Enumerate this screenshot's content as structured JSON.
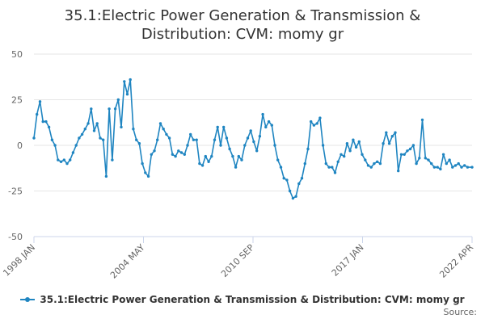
{
  "chart_data": {
    "type": "line",
    "title_lines": [
      "35.1:Electric Power Generation & Transmission &",
      "Distribution: CVM: momy gr"
    ],
    "xlabel": "",
    "ylabel": "",
    "ylim": [
      -50,
      50
    ],
    "yticks": [
      50,
      25,
      0,
      -25,
      -50
    ],
    "x_range": [
      "1998-01",
      "2022-04"
    ],
    "xtick_labels": [
      "1998 JAN",
      "2004 MAY",
      "2010 SEP",
      "2017 JAN",
      "2022 APR"
    ],
    "grid": true,
    "legend_position": "bottom-center",
    "series": [
      {
        "name": "35.1:Electric Power Generation & Transmission & Distribution: CVM: momy gr",
        "color": "#1f85c1",
        "sampled_points": [
          [
            "1998-01",
            4
          ],
          [
            "1998-03",
            17
          ],
          [
            "1998-05",
            24
          ],
          [
            "1998-07",
            13
          ],
          [
            "1998-09",
            13
          ],
          [
            "1998-11",
            10
          ],
          [
            "1999-01",
            3
          ],
          [
            "1999-03",
            0
          ],
          [
            "1999-05",
            -8
          ],
          [
            "1999-07",
            -9
          ],
          [
            "1999-09",
            -8
          ],
          [
            "1999-11",
            -10
          ],
          [
            "2000-01",
            -8
          ],
          [
            "2000-03",
            -4
          ],
          [
            "2000-05",
            0
          ],
          [
            "2000-07",
            4
          ],
          [
            "2000-09",
            6
          ],
          [
            "2000-11",
            9
          ],
          [
            "2001-01",
            12
          ],
          [
            "2001-03",
            20
          ],
          [
            "2001-05",
            8
          ],
          [
            "2001-07",
            12
          ],
          [
            "2001-09",
            4
          ],
          [
            "2001-11",
            3
          ],
          [
            "2002-01",
            -17
          ],
          [
            "2002-03",
            20
          ],
          [
            "2002-05",
            -8
          ],
          [
            "2002-07",
            20
          ],
          [
            "2002-09",
            25
          ],
          [
            "2002-11",
            10
          ],
          [
            "2003-01",
            35
          ],
          [
            "2003-03",
            28
          ],
          [
            "2003-05",
            36
          ],
          [
            "2003-07",
            9
          ],
          [
            "2003-09",
            3
          ],
          [
            "2003-11",
            1
          ],
          [
            "2004-01",
            -10
          ],
          [
            "2004-03",
            -15
          ],
          [
            "2004-05",
            -17
          ],
          [
            "2004-07",
            -5
          ],
          [
            "2004-09",
            -3
          ],
          [
            "2004-11",
            3
          ],
          [
            "2005-01",
            12
          ],
          [
            "2005-03",
            9
          ],
          [
            "2005-05",
            6
          ],
          [
            "2005-07",
            4
          ],
          [
            "2005-09",
            -5
          ],
          [
            "2005-11",
            -6
          ],
          [
            "2006-01",
            -3
          ],
          [
            "2006-03",
            -4
          ],
          [
            "2006-05",
            -5
          ],
          [
            "2006-07",
            0
          ],
          [
            "2006-09",
            6
          ],
          [
            "2006-11",
            3
          ],
          [
            "2007-01",
            3
          ],
          [
            "2007-03",
            -10
          ],
          [
            "2007-05",
            -11
          ],
          [
            "2007-07",
            -6
          ],
          [
            "2007-09",
            -9
          ],
          [
            "2007-11",
            -6
          ],
          [
            "2008-01",
            3
          ],
          [
            "2008-03",
            10
          ],
          [
            "2008-05",
            0
          ],
          [
            "2008-07",
            10
          ],
          [
            "2008-09",
            4
          ],
          [
            "2008-11",
            -2
          ],
          [
            "2009-01",
            -6
          ],
          [
            "2009-03",
            -12
          ],
          [
            "2009-05",
            -6
          ],
          [
            "2009-07",
            -8
          ],
          [
            "2009-09",
            0
          ],
          [
            "2009-11",
            4
          ],
          [
            "2010-01",
            8
          ],
          [
            "2010-03",
            2
          ],
          [
            "2010-05",
            -3
          ],
          [
            "2010-07",
            5
          ],
          [
            "2010-09",
            17
          ],
          [
            "2010-11",
            10
          ],
          [
            "2011-01",
            13
          ],
          [
            "2011-03",
            11
          ],
          [
            "2011-05",
            0
          ],
          [
            "2011-07",
            -8
          ],
          [
            "2011-09",
            -12
          ],
          [
            "2011-11",
            -18
          ],
          [
            "2012-01",
            -19
          ],
          [
            "2012-03",
            -25
          ],
          [
            "2012-05",
            -29
          ],
          [
            "2012-07",
            -28
          ],
          [
            "2012-09",
            -21
          ],
          [
            "2012-11",
            -18
          ],
          [
            "2013-01",
            -10
          ],
          [
            "2013-03",
            -2
          ],
          [
            "2013-05",
            13
          ],
          [
            "2013-07",
            11
          ],
          [
            "2013-09",
            12
          ],
          [
            "2013-11",
            15
          ],
          [
            "2014-01",
            0
          ],
          [
            "2014-03",
            -10
          ],
          [
            "2014-05",
            -12
          ],
          [
            "2014-07",
            -12
          ],
          [
            "2014-09",
            -15
          ],
          [
            "2014-11",
            -9
          ],
          [
            "2015-01",
            -5
          ],
          [
            "2015-03",
            -6
          ],
          [
            "2015-05",
            1
          ],
          [
            "2015-07",
            -3
          ],
          [
            "2015-09",
            3
          ],
          [
            "2015-11",
            -1
          ],
          [
            "2016-01",
            2
          ],
          [
            "2016-03",
            -5
          ],
          [
            "2016-05",
            -8
          ],
          [
            "2016-07",
            -11
          ],
          [
            "2016-09",
            -12
          ],
          [
            "2016-11",
            -10
          ],
          [
            "2017-01",
            -9
          ],
          [
            "2017-03",
            -10
          ],
          [
            "2017-05",
            1
          ],
          [
            "2017-07",
            7
          ],
          [
            "2017-09",
            1
          ],
          [
            "2017-11",
            5
          ],
          [
            "2018-01",
            7
          ],
          [
            "2018-03",
            -14
          ],
          [
            "2018-05",
            -5
          ],
          [
            "2018-07",
            -5
          ],
          [
            "2018-09",
            -3
          ],
          [
            "2018-11",
            -2
          ],
          [
            "2019-01",
            0
          ],
          [
            "2019-03",
            -10
          ],
          [
            "2019-05",
            -7
          ],
          [
            "2019-07",
            14
          ],
          [
            "2019-09",
            -7
          ],
          [
            "2019-11",
            -8
          ],
          [
            "2020-01",
            -10
          ],
          [
            "2020-03",
            -12
          ],
          [
            "2020-05",
            -12
          ],
          [
            "2020-07",
            -13
          ],
          [
            "2020-09",
            -5
          ],
          [
            "2020-11",
            -10
          ],
          [
            "2021-01",
            -8
          ],
          [
            "2021-03",
            -12
          ],
          [
            "2021-05",
            -11
          ],
          [
            "2021-07",
            -10
          ],
          [
            "2021-09",
            -12
          ],
          [
            "2021-11",
            -11
          ],
          [
            "2022-01",
            -12
          ],
          [
            "2022-04",
            -12
          ]
        ]
      }
    ]
  },
  "source_label": "Source:"
}
